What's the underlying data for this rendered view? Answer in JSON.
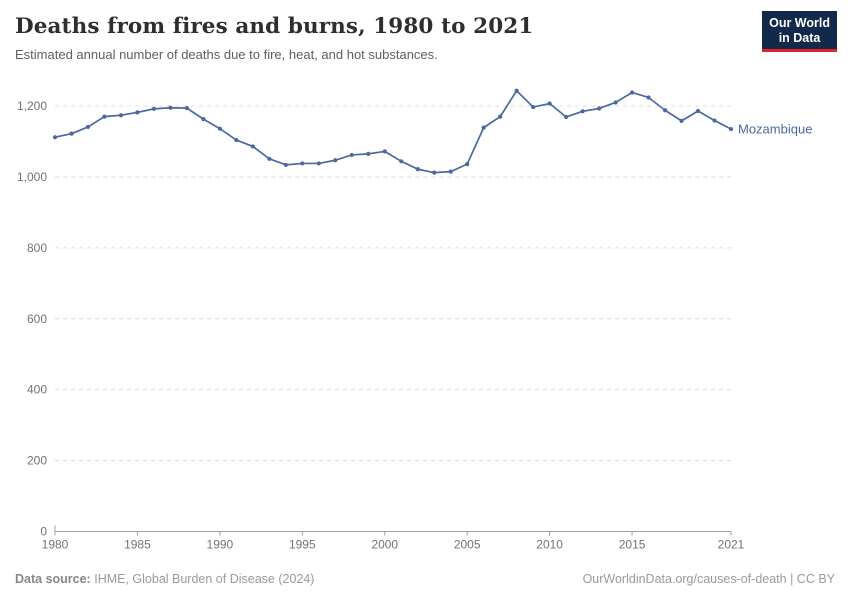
{
  "header": {
    "title": "Deaths from fires and burns, 1980 to 2021",
    "subtitle": "Estimated annual number of deaths due to fire, heat, and hot substances.",
    "logo": {
      "line1": "Our World",
      "line2": "in Data"
    }
  },
  "chart_data": {
    "type": "line",
    "title": "Deaths from fires and burns, 1980 to 2021",
    "xlabel": "",
    "ylabel": "",
    "xlim": [
      1980,
      2021
    ],
    "ylim": [
      0,
      1260
    ],
    "grid": "horizontal-dashed",
    "legend_position": "end-of-line-label",
    "x_ticks": [
      1980,
      1985,
      1990,
      1995,
      2000,
      2005,
      2010,
      2015,
      2021
    ],
    "y_ticks": [
      0,
      200,
      400,
      600,
      800,
      1000,
      1200
    ],
    "x": [
      1980,
      1981,
      1982,
      1983,
      1984,
      1985,
      1986,
      1987,
      1988,
      1989,
      1990,
      1991,
      1992,
      1993,
      1994,
      1995,
      1996,
      1997,
      1998,
      1999,
      2000,
      2001,
      2002,
      2003,
      2004,
      2005,
      2006,
      2007,
      2008,
      2009,
      2010,
      2011,
      2012,
      2013,
      2014,
      2015,
      2016,
      2017,
      2018,
      2019,
      2020,
      2021
    ],
    "series": [
      {
        "name": "Mozambique",
        "color": "#4b69a0",
        "values": [
          1112,
          1122,
          1141,
          1170,
          1174,
          1182,
          1192,
          1195,
          1194,
          1163,
          1136,
          1104,
          1086,
          1051,
          1034,
          1038,
          1038,
          1047,
          1062,
          1065,
          1072,
          1044,
          1022,
          1012,
          1015,
          1036,
          1139,
          1170,
          1243,
          1197,
          1207,
          1169,
          1185,
          1193,
          1210,
          1238,
          1224,
          1188,
          1158,
          1186,
          1159,
          1135
        ]
      }
    ],
    "colors": {
      "line": "#4b69a0",
      "gridline": "#dcdcdc",
      "axis": "#a0a0a0",
      "tick_label": "#737373"
    }
  },
  "footer": {
    "source_label": "Data source:",
    "source_text": "IHME, Global Burden of Disease (2024)",
    "link_text": "OurWorldinData.org/causes-of-death | CC BY"
  }
}
